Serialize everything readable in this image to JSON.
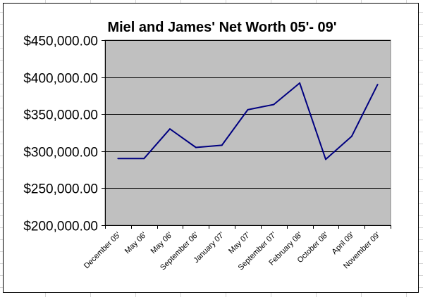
{
  "chart_data": {
    "type": "line",
    "title": "Miel and James' Net Worth 05'- 09'",
    "xlabel": "",
    "ylabel": "",
    "categories": [
      "December 05'",
      "May 06'",
      "May 06'",
      "September 06'",
      "January 07'",
      "May 07'",
      "September 07'",
      "February 08'",
      "October 08'",
      "April 09'",
      "November 09'"
    ],
    "series": [
      {
        "values": [
          290000,
          290000,
          330000,
          305000,
          308000,
          356000,
          363000,
          392000,
          289000,
          320000,
          390000
        ]
      }
    ],
    "ylim": [
      200000,
      450000
    ],
    "y_ticks": [
      "$450,000.00",
      "$400,000.00",
      "$350,000.00",
      "$300,000.00",
      "$250,000.00",
      "$200,000.00"
    ],
    "y_tick_values": [
      450000,
      400000,
      350000,
      300000,
      250000,
      200000
    ],
    "grid": true,
    "legend": "none",
    "colors": {
      "plot_background": "#C0C0C0",
      "line": "#000080",
      "grid": "#000000"
    }
  }
}
